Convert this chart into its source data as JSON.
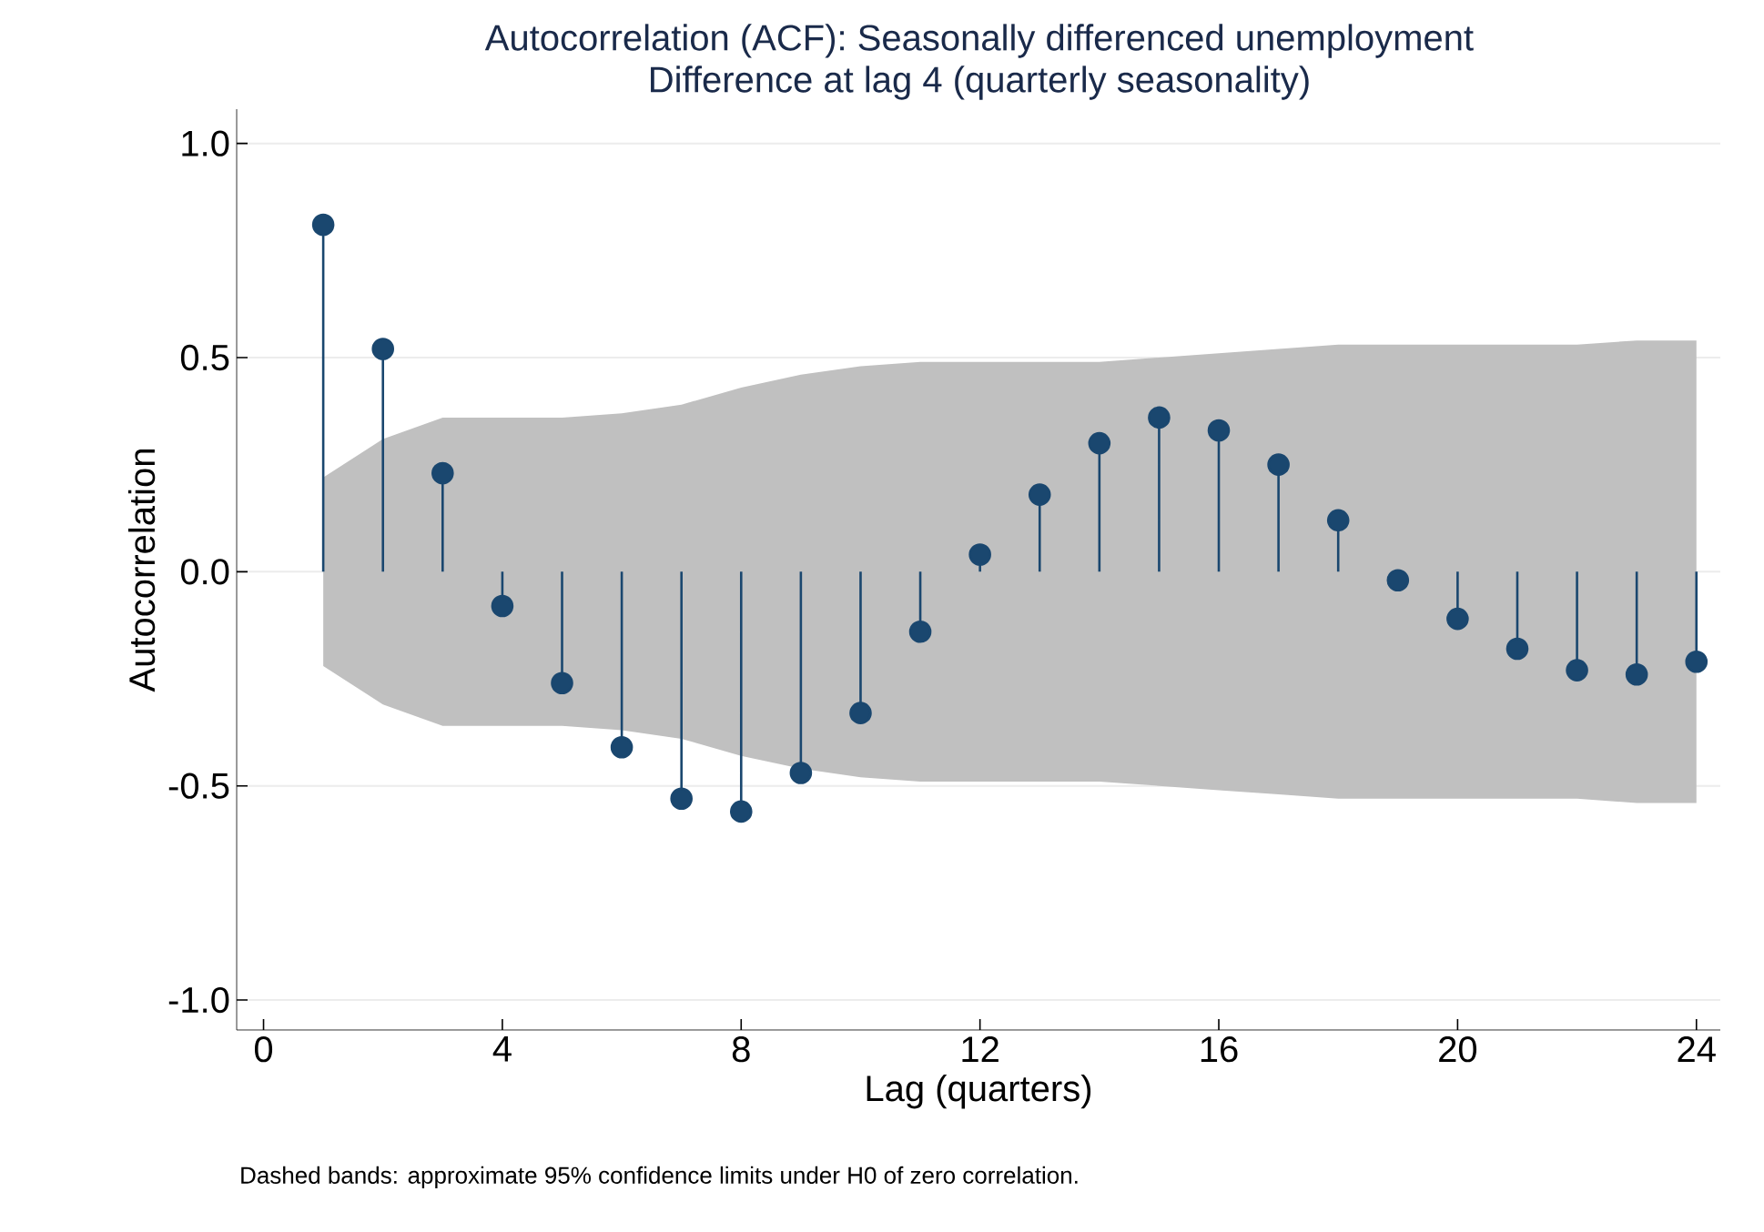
{
  "chart_data": {
    "type": "lollipop",
    "title": "Autocorrelation (ACF): Seasonally differenced unemployment",
    "subtitle": "Difference at lag 4 (quarterly seasonality)",
    "xlabel": "Lag (quarters)",
    "ylabel": "Autocorrelation",
    "annotations": [
      "Dashed bands: approximate 95% confidence limits under H0 of zero correlation."
    ],
    "x": [
      1,
      2,
      3,
      4,
      5,
      6,
      7,
      8,
      9,
      10,
      11,
      12,
      13,
      14,
      15,
      16,
      17,
      18,
      19,
      20,
      21,
      22,
      23,
      24
    ],
    "series": [
      {
        "color": "#1a476f",
        "values": [
          0.81,
          0.52,
          0.23,
          -0.08,
          -0.26,
          -0.41,
          -0.53,
          -0.56,
          -0.47,
          -0.33,
          -0.14,
          0.04,
          0.18,
          0.3,
          0.36,
          0.33,
          0.25,
          0.12,
          -0.02,
          -0.11,
          -0.18,
          -0.23,
          -0.24,
          -0.21
        ],
        "upper": [
          0.22,
          0.31,
          0.36,
          0.36,
          0.36,
          0.37,
          0.39,
          0.43,
          0.46,
          0.48,
          0.49,
          0.49,
          0.49,
          0.49,
          0.5,
          0.51,
          0.52,
          0.53,
          0.53,
          0.53,
          0.53,
          0.53,
          0.54,
          0.54
        ],
        "lower": [
          -0.22,
          -0.31,
          -0.36,
          -0.36,
          -0.36,
          -0.37,
          -0.39,
          -0.43,
          -0.46,
          -0.48,
          -0.49,
          -0.49,
          -0.49,
          -0.49,
          -0.5,
          -0.51,
          -0.52,
          -0.53,
          -0.53,
          -0.53,
          -0.53,
          -0.53,
          -0.54,
          -0.54
        ]
      }
    ],
    "xlim": [
      -0.45,
      24.4
    ],
    "ylim": [
      -1.07,
      1.08
    ],
    "xticks": [
      0,
      4,
      8,
      12,
      16,
      20,
      24
    ],
    "yticks": [
      {
        "value": 1,
        "label": "1.0"
      },
      {
        "value": 0.5,
        "label": "0.5"
      },
      {
        "value": 0,
        "label": "0.0"
      },
      {
        "value": -0.5,
        "label": "-0.5"
      },
      {
        "value": -1,
        "label": "-1.0"
      }
    ],
    "grid": "y",
    "marker": "circle"
  }
}
